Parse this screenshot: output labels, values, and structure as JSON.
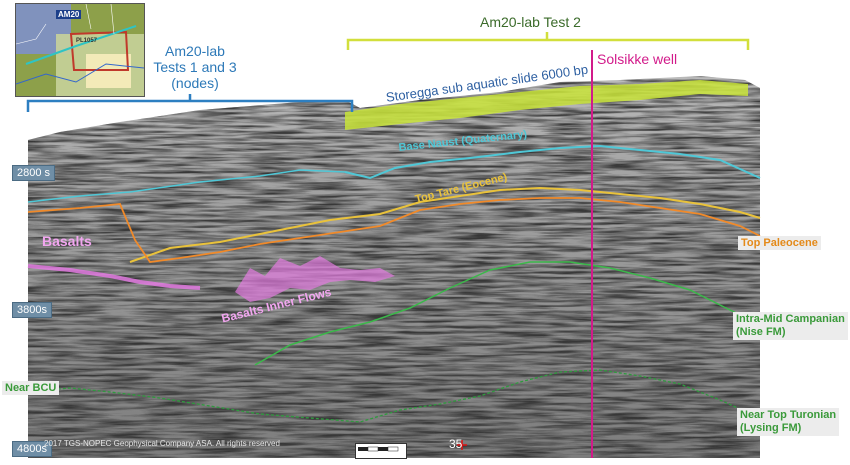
{
  "labels": {
    "tests_1_3": [
      "Am20-lab",
      "Tests 1 and 3",
      "(nodes)"
    ],
    "test_2": "Am20-lab Test 2",
    "well": "Solsikke well",
    "slide": "Storegga sub aquatic slide 6000 bp",
    "base_naust": "Base Naust (Quaternary)",
    "top_tare": "Top Tare (Eocene)",
    "basalts": "Basalts",
    "basalts_inner": "Basalts Inner Flows",
    "top_paleocene": "Top Paleocene",
    "intra_mid_campanian": [
      "Intra-Mid Campanian",
      "(Nise FM)"
    ],
    "near_bcu": "Near BCU",
    "near_top_turonian": [
      "Near Top Turonian",
      "(Lysing FM)"
    ]
  },
  "time_markers": [
    "2800 s",
    "3800s",
    "4800s"
  ],
  "inset_map": {
    "area": "AM20",
    "license": "PL1057"
  },
  "footer": {
    "copyright": "2017 TGS-NOPEC Geophysical Company ASA. All rights reserved",
    "page_number": "35"
  },
  "colors": {
    "blue_bracket": "#2d7fc1",
    "yellow_bracket": "#d2df3c",
    "well_line": "#d21a8a",
    "base_naust": "#4fc7d6",
    "top_tare": "#e9c23b",
    "top_paleocene": "#f08a2a",
    "basalts": "#e27ae0",
    "campanian": "#3bb84a",
    "turonian": "#2f9a3e",
    "slide": "#c9e43a"
  }
}
